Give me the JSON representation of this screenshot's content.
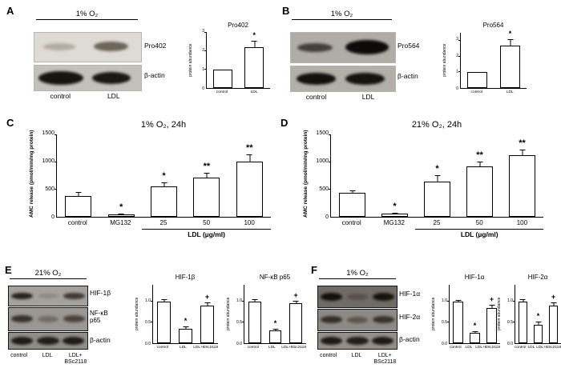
{
  "panels": {
    "A": {
      "label": "A",
      "condition": "1% O₂",
      "blots": [
        "Pro402",
        "β-actin"
      ],
      "lanes": [
        "control",
        "LDL"
      ]
    },
    "B": {
      "label": "B",
      "condition": "1% O₂",
      "blots": [
        "Pro564",
        "β-actin"
      ],
      "lanes": [
        "control",
        "LDL"
      ]
    },
    "C": {
      "label": "C"
    },
    "D": {
      "label": "D"
    },
    "E": {
      "label": "E",
      "condition": "21% O₂",
      "blots": [
        "HIF-1β",
        "NF-κB p65",
        "β-actin"
      ],
      "lanes": [
        "control",
        "LDL",
        "LDL+\nBSc2118"
      ]
    },
    "F": {
      "label": "F",
      "condition": "1% O₂",
      "blots": [
        "HIF-1α",
        "HIF-2α",
        "β-actin"
      ],
      "lanes": [
        "control",
        "LDL",
        "LDL+\nBSc2118"
      ]
    }
  },
  "chart_data": [
    {
      "id": "pro402",
      "type": "bar",
      "title": "Pro402",
      "ylabel": "protein abundance",
      "categories": [
        "control",
        "LDL"
      ],
      "values": [
        1.0,
        2.2
      ],
      "errors": [
        0,
        0.35
      ],
      "sig": [
        "",
        "*"
      ],
      "ylim": [
        0,
        3
      ],
      "yticks": [
        0,
        1,
        2,
        3
      ],
      "ytick_decimals": 0
    },
    {
      "id": "pro564",
      "type": "bar",
      "title": "Pro564",
      "ylabel": "protein abundance",
      "categories": [
        "control",
        "LDL"
      ],
      "values": [
        1.0,
        2.7
      ],
      "errors": [
        0,
        0.4
      ],
      "sig": [
        "",
        "*"
      ],
      "ylim": [
        0,
        3.5
      ],
      "yticks": [
        0,
        1,
        2,
        3
      ],
      "ytick_decimals": 0
    },
    {
      "id": "amc_1pct",
      "type": "bar",
      "title": "1% O₂, 24h",
      "ylabel": "AMC release (pmol/min/mg protein)",
      "categories": [
        "control",
        "MG132",
        "25",
        "50",
        "100"
      ],
      "values": [
        380,
        50,
        560,
        720,
        1020
      ],
      "errors": [
        70,
        15,
        70,
        90,
        120
      ],
      "sig": [
        "",
        "*",
        "*",
        "**",
        "**"
      ],
      "ylim": [
        0,
        1500
      ],
      "yticks": [
        0,
        500,
        1000,
        1500
      ],
      "ytick_decimals": 0,
      "group_label": "LDL (µg/ml)",
      "group_range": [
        2,
        4
      ]
    },
    {
      "id": "amc_21pct",
      "type": "bar",
      "title": "21% O₂, 24h",
      "ylabel": "AMC release (pmol/min/mg protein)",
      "categories": [
        "control",
        "MG132",
        "25",
        "50",
        "100"
      ],
      "values": [
        440,
        60,
        650,
        930,
        1130
      ],
      "errors": [
        40,
        15,
        110,
        90,
        100
      ],
      "sig": [
        "",
        "*",
        "*",
        "**",
        "**"
      ],
      "ylim": [
        0,
        1500
      ],
      "yticks": [
        0,
        500,
        1000,
        1500
      ],
      "ytick_decimals": 0,
      "group_label": "LDL (µg/ml)",
      "group_range": [
        2,
        4
      ]
    },
    {
      "id": "hif1b",
      "type": "bar",
      "title": "HIF-1β",
      "ylabel": "protein abundance",
      "categories": [
        "control",
        "LDL",
        "LDL+BSc2118"
      ],
      "values": [
        1.0,
        0.35,
        0.9
      ],
      "errors": [
        0.05,
        0.05,
        0.08
      ],
      "sig": [
        "",
        "*",
        "+"
      ],
      "ylim": [
        0,
        1.4
      ],
      "yticks": [
        0,
        0.5,
        1.0
      ],
      "ytick_decimals": 1
    },
    {
      "id": "nfkb",
      "type": "bar",
      "title": "NF-κB p65",
      "ylabel": "protein abundance",
      "categories": [
        "control",
        "LDL",
        "LDL+BSc2118"
      ],
      "values": [
        1.0,
        0.3,
        0.95
      ],
      "errors": [
        0.05,
        0.05,
        0.07
      ],
      "sig": [
        "",
        "*",
        "+"
      ],
      "ylim": [
        0,
        1.4
      ],
      "yticks": [
        0,
        0.5,
        1.0
      ],
      "ytick_decimals": 1
    },
    {
      "id": "hif1a",
      "type": "bar",
      "title": "HIF-1α",
      "ylabel": "protein abundance",
      "categories": [
        "control",
        "LDL",
        "LDL+BSc2118"
      ],
      "values": [
        1.0,
        0.25,
        0.85
      ],
      "errors": [
        0.04,
        0.04,
        0.08
      ],
      "sig": [
        "",
        "*",
        "+"
      ],
      "ylim": [
        0,
        1.4
      ],
      "yticks": [
        0,
        0.5,
        1.0
      ],
      "ytick_decimals": 1
    },
    {
      "id": "hif2a",
      "type": "bar",
      "title": "HIF-2α",
      "ylabel": "protein abundance",
      "categories": [
        "control",
        "LDL",
        "LDL+BSc2118"
      ],
      "values": [
        1.0,
        0.45,
        0.9
      ],
      "errors": [
        0.05,
        0.07,
        0.08
      ],
      "sig": [
        "",
        "*",
        "+"
      ],
      "ylim": [
        0,
        1.4
      ],
      "yticks": [
        0,
        0.5,
        1.0
      ],
      "ytick_decimals": 1
    }
  ]
}
